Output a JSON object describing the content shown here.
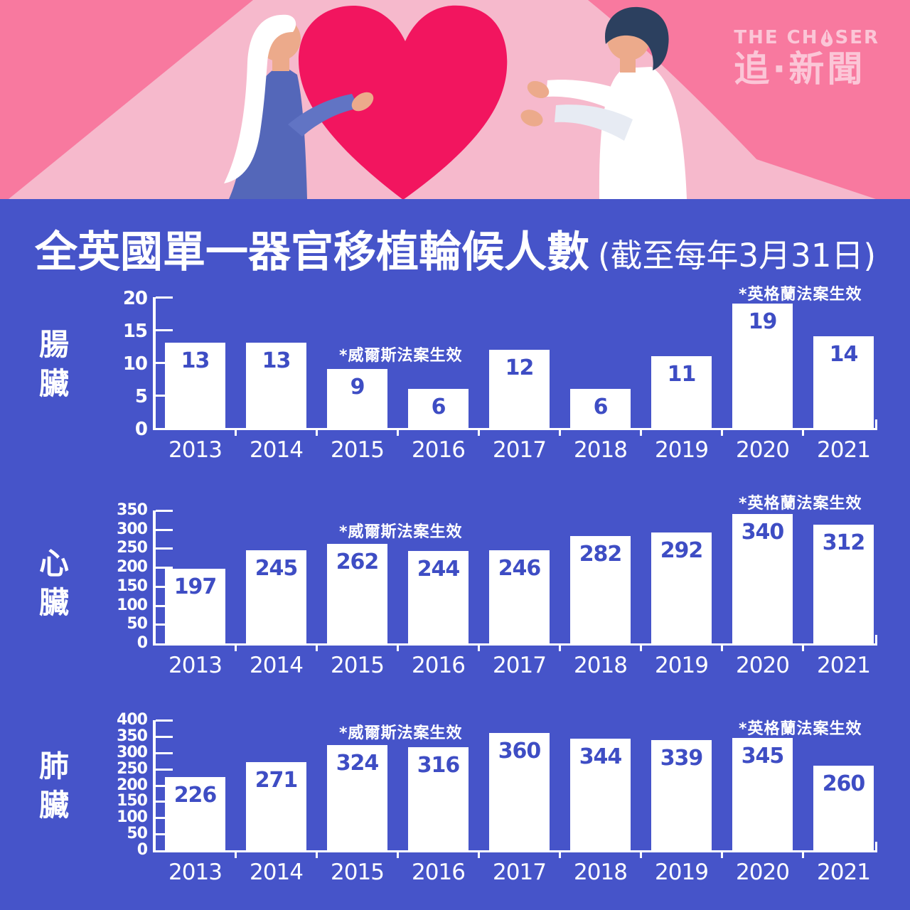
{
  "colors": {
    "background_blue": "#4654c9",
    "bar_fill": "#ffffff",
    "bar_value_text": "#3e4dc4",
    "header_pink": "#f8799f",
    "header_light_pink": "#f6b9cc",
    "heart_red": "#f2155f",
    "logo_pink": "#fbc6d7",
    "axis_white": "#ffffff"
  },
  "brand": {
    "name_full": "THE CHASER",
    "name_prefix": "THE CH",
    "name_suffix": "SER",
    "chinese_name": "追·新聞"
  },
  "title": {
    "main": "全英國單一器官移植輪候人數",
    "sub": "(截至每年3月31日)"
  },
  "chart_data": [
    {
      "type": "bar",
      "title": "腸臟",
      "organ": "腸臟",
      "categories": [
        "2013",
        "2014",
        "2015",
        "2016",
        "2017",
        "2018",
        "2019",
        "2020",
        "2021"
      ],
      "values": [
        13,
        13,
        9,
        6,
        12,
        6,
        11,
        19,
        14
      ],
      "xlabel": "",
      "ylabel": "",
      "ylim": [
        0,
        20
      ],
      "yticks": [
        0,
        5,
        10,
        15,
        20
      ],
      "grid": false,
      "annotations": [
        {
          "text": "*威爾斯法案生效",
          "near": "2015"
        },
        {
          "text": "*英格蘭法案生效",
          "near": "2020"
        }
      ]
    },
    {
      "type": "bar",
      "title": "心臟",
      "organ": "心臟",
      "categories": [
        "2013",
        "2014",
        "2015",
        "2016",
        "2017",
        "2018",
        "2019",
        "2020",
        "2021"
      ],
      "values": [
        197,
        245,
        262,
        244,
        246,
        282,
        292,
        340,
        312
      ],
      "xlabel": "",
      "ylabel": "",
      "ylim": [
        0,
        350
      ],
      "yticks": [
        0,
        50,
        100,
        150,
        200,
        250,
        300,
        350
      ],
      "grid": false,
      "annotations": [
        {
          "text": "*威爾斯法案生效",
          "near": "2015"
        },
        {
          "text": "*英格蘭法案生效",
          "near": "2020"
        }
      ]
    },
    {
      "type": "bar",
      "title": "肺臟",
      "organ": "肺臟",
      "categories": [
        "2013",
        "2014",
        "2015",
        "2016",
        "2017",
        "2018",
        "2019",
        "2020",
        "2021"
      ],
      "values": [
        226,
        271,
        324,
        316,
        360,
        344,
        339,
        345,
        260
      ],
      "xlabel": "",
      "ylabel": "",
      "ylim": [
        0,
        400
      ],
      "yticks": [
        0,
        50,
        100,
        150,
        200,
        250,
        300,
        350,
        400
      ],
      "grid": false,
      "annotations": [
        {
          "text": "*威爾斯法案生效",
          "near": "2015"
        },
        {
          "text": "*英格蘭法案生效",
          "near": "2020"
        }
      ]
    }
  ]
}
